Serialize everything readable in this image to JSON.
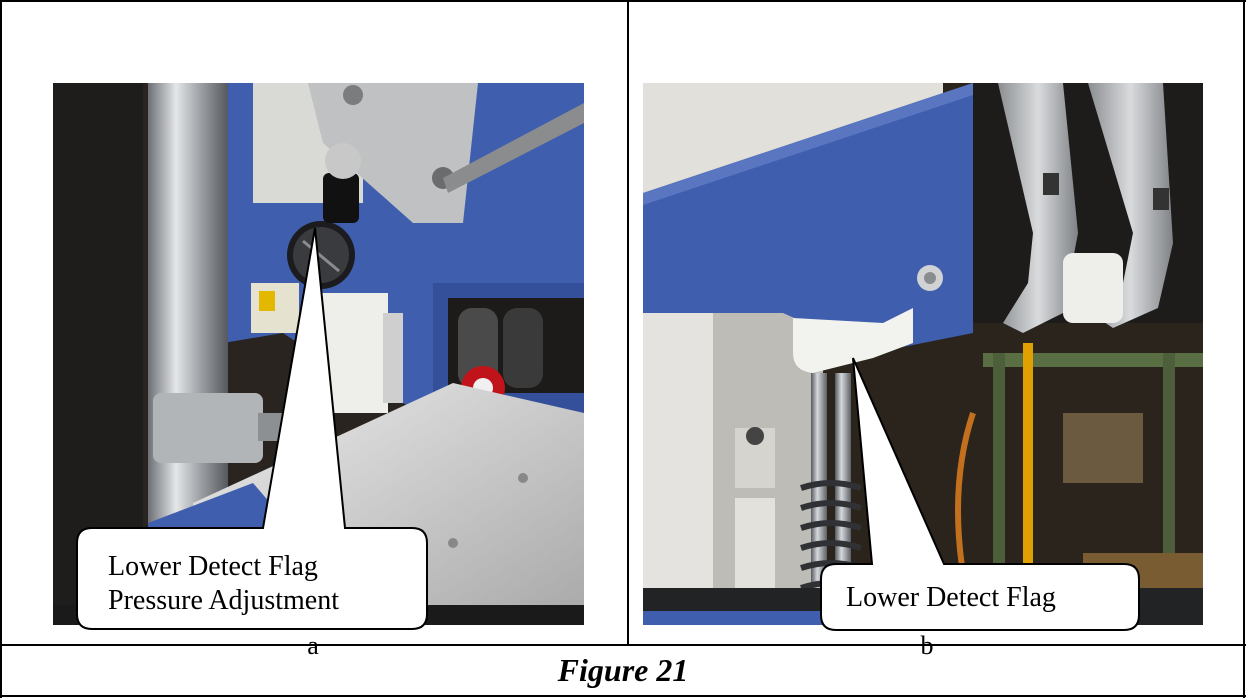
{
  "figure": {
    "caption": "Figure 21"
  },
  "panels": [
    {
      "letter": "a",
      "callout": {
        "line1": "Lower Detect Flag",
        "line2": "Pressure Adjustment"
      }
    },
    {
      "letter": "b",
      "callout": {
        "line1": "Lower Detect Flag"
      }
    }
  ],
  "colors": {
    "machine_blue": "#3f5fae",
    "stainless": "#b8bcc0",
    "nylon_white": "#f2f2ee",
    "background_dark": "#2a241e"
  }
}
